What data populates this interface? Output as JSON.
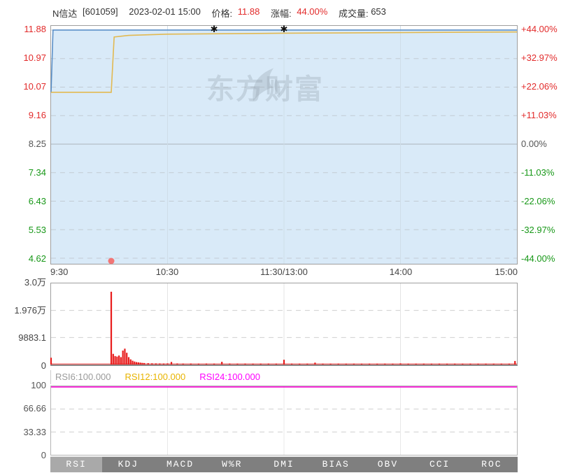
{
  "header": {
    "stock_name": "N信达",
    "stock_code": "[601059]",
    "datetime": "2023-02-01 15:00",
    "price_label": "价格:",
    "price_value": "11.88",
    "change_label": "涨幅:",
    "change_value": "44.00%",
    "volume_label": "成交量:",
    "volume_value": "653"
  },
  "watermark": {
    "text": "东方财富"
  },
  "main_chart": {
    "y_axis_left": [
      {
        "text": "11.88",
        "color": "#e22b2b"
      },
      {
        "text": "10.97",
        "color": "#e22b2b"
      },
      {
        "text": "10.07",
        "color": "#e22b2b"
      },
      {
        "text": "9.16",
        "color": "#e22b2b"
      },
      {
        "text": "8.25",
        "color": "#555555"
      },
      {
        "text": "7.34",
        "color": "#189818"
      },
      {
        "text": "6.43",
        "color": "#189818"
      },
      {
        "text": "5.53",
        "color": "#189818"
      },
      {
        "text": "4.62",
        "color": "#189818"
      }
    ],
    "y_axis_right": [
      {
        "text": "+44.00%",
        "color": "#e22b2b"
      },
      {
        "text": "+32.97%",
        "color": "#e22b2b"
      },
      {
        "text": "+22.06%",
        "color": "#e22b2b"
      },
      {
        "text": "+11.03%",
        "color": "#e22b2b"
      },
      {
        "text": "0.00%",
        "color": "#555555"
      },
      {
        "text": "-11.03%",
        "color": "#189818"
      },
      {
        "text": "-22.06%",
        "color": "#189818"
      },
      {
        "text": "-32.97%",
        "color": "#189818"
      },
      {
        "text": "-44.00%",
        "color": "#189818"
      }
    ],
    "time_axis": [
      {
        "label": "9:30",
        "min": 0,
        "align": "left"
      },
      {
        "label": "10:30",
        "min": 60,
        "align": "center"
      },
      {
        "label": "11:30/13:00",
        "min": 120,
        "align": "center"
      },
      {
        "label": "14:00",
        "min": 180,
        "align": "center"
      },
      {
        "label": "15:00",
        "min": 240,
        "align": "right"
      }
    ],
    "markers": [
      {
        "shape": "asterisk",
        "minute": 84,
        "color": "#111111"
      },
      {
        "shape": "asterisk",
        "minute": 120,
        "color": "#111111"
      },
      {
        "shape": "dot",
        "minute": 31,
        "color": "#f17575"
      }
    ]
  },
  "volume_axis": [
    "3.0万",
    "1.976万",
    "9883.1",
    "0"
  ],
  "rsi_axis": [
    "100",
    "66.66",
    "33.33",
    "0"
  ],
  "indicator_readout": [
    {
      "name": "rsi6",
      "text": "RSI6:100.000",
      "color": "#9a9a9a"
    },
    {
      "name": "rsi12",
      "text": "RSI12:100.000",
      "color": "#e8b400"
    },
    {
      "name": "rsi24",
      "text": "RSI24:100.000",
      "color": "#ff00ff"
    }
  ],
  "tabs": [
    {
      "label": "RSI",
      "active": true
    },
    {
      "label": "KDJ",
      "active": false
    },
    {
      "label": "MACD",
      "active": false
    },
    {
      "label": "W%R",
      "active": false
    },
    {
      "label": "DMI",
      "active": false
    },
    {
      "label": "BIAS",
      "active": false
    },
    {
      "label": "OBV",
      "active": false
    },
    {
      "label": "CCI",
      "active": false
    },
    {
      "label": "ROC",
      "active": false
    }
  ],
  "chart_data": [
    {
      "id": "price",
      "type": "line",
      "title": "N信达 601059 intraday 2023-02-01",
      "x_unit": "trading_minute",
      "x_range": [
        0,
        240
      ],
      "ylim": [
        4.62,
        11.88
      ],
      "prev_close": 8.25,
      "y_ticks": [
        11.88,
        10.97,
        10.07,
        9.16,
        8.25,
        7.34,
        6.43,
        5.53,
        4.62
      ],
      "y2_ticks": [
        "+44.00%",
        "+32.97%",
        "+22.06%",
        "+11.03%",
        "0.00%",
        "-11.03%",
        "-22.06%",
        "-32.97%",
        "-44.00%"
      ],
      "grid": "dashed-horizontal, solid verticals at 10:30 / 11:30-13:00 / 14:00",
      "series": [
        {
          "name": "price",
          "color": "#5a8fc7",
          "fill": "#d9eaf8",
          "points": [
            [
              0,
              9.9
            ],
            [
              1,
              11.88
            ],
            [
              240,
              11.88
            ]
          ]
        },
        {
          "name": "avg_price",
          "color": "#e2b951",
          "points": [
            [
              0,
              9.9
            ],
            [
              31,
              9.9
            ],
            [
              32.5,
              11.66
            ],
            [
              40,
              11.71
            ],
            [
              60,
              11.75
            ],
            [
              120,
              11.78
            ],
            [
              180,
              11.8
            ],
            [
              240,
              11.82
            ]
          ]
        }
      ]
    },
    {
      "id": "volume",
      "type": "bar",
      "x_unit": "trading_minute",
      "x_range": [
        0,
        240
      ],
      "ylim": [
        0,
        29650
      ],
      "y_tick_labels": [
        "3.0万",
        "1.976万",
        "9883.1",
        "0"
      ],
      "color": "#e81c1c",
      "continuous_baseline": true,
      "bars": [
        [
          0,
          2500
        ],
        [
          31,
          26600
        ],
        [
          32,
          3900
        ],
        [
          33,
          3100
        ],
        [
          34,
          2900
        ],
        [
          35,
          3300
        ],
        [
          36,
          2700
        ],
        [
          37,
          5100
        ],
        [
          38,
          5800
        ],
        [
          39,
          4300
        ],
        [
          40,
          2700
        ],
        [
          41,
          1900
        ],
        [
          42,
          1400
        ],
        [
          43,
          1100
        ],
        [
          44,
          900
        ],
        [
          45,
          800
        ],
        [
          46,
          700
        ],
        [
          47,
          600
        ],
        [
          48,
          550
        ],
        [
          50,
          500
        ],
        [
          52,
          450
        ],
        [
          54,
          420
        ],
        [
          56,
          400
        ],
        [
          58,
          380
        ],
        [
          60,
          420
        ],
        [
          62,
          950
        ],
        [
          65,
          400
        ],
        [
          68,
          350
        ],
        [
          72,
          380
        ],
        [
          76,
          330
        ],
        [
          80,
          360
        ],
        [
          84,
          340
        ],
        [
          88,
          1000
        ],
        [
          92,
          380
        ],
        [
          96,
          330
        ],
        [
          100,
          350
        ],
        [
          104,
          320
        ],
        [
          108,
          340
        ],
        [
          112,
          360
        ],
        [
          116,
          330
        ],
        [
          120,
          1750
        ],
        [
          124,
          340
        ],
        [
          128,
          320
        ],
        [
          132,
          330
        ],
        [
          136,
          700
        ],
        [
          140,
          320
        ],
        [
          144,
          310
        ],
        [
          148,
          330
        ],
        [
          152,
          310
        ],
        [
          156,
          320
        ],
        [
          160,
          310
        ],
        [
          164,
          320
        ],
        [
          168,
          310
        ],
        [
          172,
          330
        ],
        [
          176,
          310
        ],
        [
          180,
          420
        ],
        [
          184,
          320
        ],
        [
          188,
          310
        ],
        [
          192,
          330
        ],
        [
          196,
          310
        ],
        [
          200,
          340
        ],
        [
          204,
          310
        ],
        [
          208,
          320
        ],
        [
          212,
          310
        ],
        [
          216,
          330
        ],
        [
          220,
          310
        ],
        [
          224,
          320
        ],
        [
          228,
          310
        ],
        [
          232,
          330
        ],
        [
          236,
          320
        ],
        [
          239,
          1300
        ]
      ]
    },
    {
      "id": "rsi",
      "type": "line",
      "x_range": [
        0,
        240
      ],
      "ylim": [
        0,
        100
      ],
      "y_ticks": [
        100,
        66.66,
        33.33,
        0
      ],
      "series": [
        {
          "name": "RSI6",
          "value": 100,
          "color": "#9a9a9a",
          "points": [
            [
              0,
              100
            ],
            [
              240,
              100
            ]
          ]
        },
        {
          "name": "RSI12",
          "value": 100,
          "color": "#e8b400",
          "points": [
            [
              0,
              100
            ],
            [
              240,
              100
            ]
          ]
        },
        {
          "name": "RSI24",
          "value": 100,
          "color": "#ff00ff",
          "points": [
            [
              0,
              100
            ],
            [
              240,
              100
            ]
          ]
        }
      ]
    }
  ]
}
